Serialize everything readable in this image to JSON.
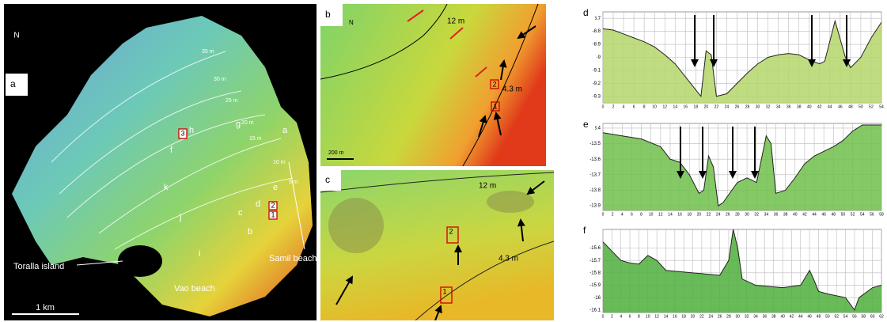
{
  "map_a": {
    "label": "a",
    "north": "N",
    "contours": [
      "35 m",
      "30 m",
      "25 m",
      "20 m",
      "15 m",
      "10 m",
      "5 m"
    ],
    "letters": [
      "g",
      "h",
      "f",
      "k",
      "j",
      "c",
      "d",
      "e",
      "a",
      "b",
      "i"
    ],
    "boxes": [
      "3",
      "2",
      "1"
    ],
    "places": [
      "Toralla island",
      "Samil beach",
      "Vao beach"
    ],
    "scale": "1 km"
  },
  "map_b": {
    "label": "b",
    "north": "N",
    "depths": [
      "12 m",
      "4.3 m"
    ],
    "boxes": [
      "2",
      "1"
    ],
    "scale": "200 m"
  },
  "map_c": {
    "label": "c",
    "depths": [
      "12 m",
      "4.3 m"
    ],
    "boxes": [
      "2",
      "1"
    ]
  },
  "chart_data": [
    {
      "type": "line",
      "label": "d",
      "x": [
        0,
        2,
        4,
        6,
        8,
        10,
        12,
        14,
        16,
        18,
        19,
        20,
        21,
        22,
        24,
        26,
        28,
        30,
        32,
        34,
        36,
        38,
        40,
        42,
        43,
        45,
        47,
        48,
        50,
        52,
        54
      ],
      "values": [
        -8.78,
        -8.79,
        -8.82,
        -8.85,
        -8.88,
        -8.92,
        -8.98,
        -9.05,
        -9.15,
        -9.25,
        -9.3,
        -8.95,
        -8.98,
        -9.3,
        -9.28,
        -9.2,
        -9.12,
        -9.05,
        -9.0,
        -8.98,
        -8.97,
        -8.98,
        -9.02,
        -9.05,
        -9.03,
        -8.72,
        -9.0,
        -9.08,
        -9.0,
        -8.85,
        -8.73
      ],
      "xlim": [
        0,
        54
      ],
      "xticks": [
        0,
        2,
        4,
        6,
        8,
        10,
        12,
        14,
        16,
        18,
        20,
        22,
        24,
        26,
        28,
        30,
        32,
        34,
        36,
        38,
        40,
        42,
        44,
        46,
        48,
        50,
        52,
        54
      ],
      "ylim": [
        -9.35,
        -8.65
      ],
      "yticks": [
        -8.7,
        -8.8,
        -8.9,
        -9.0,
        -9.1,
        -9.2,
        -9.3
      ],
      "color": "#b5d66a"
    },
    {
      "type": "line",
      "label": "e",
      "x": [
        0,
        4,
        8,
        12,
        14,
        16,
        18,
        20,
        21,
        22,
        23,
        24,
        25,
        28,
        30,
        32,
        34,
        35,
        36,
        38,
        40,
        42,
        44,
        46,
        48,
        50,
        52,
        54,
        58
      ],
      "values": [
        -13.43,
        -13.45,
        -13.47,
        -13.52,
        -13.6,
        -13.62,
        -13.7,
        -13.82,
        -13.8,
        -13.58,
        -13.65,
        -13.9,
        -13.88,
        -13.75,
        -13.72,
        -13.75,
        -13.45,
        -13.5,
        -13.82,
        -13.8,
        -13.72,
        -13.63,
        -13.58,
        -13.55,
        -13.52,
        -13.48,
        -13.42,
        -13.38,
        -13.38
      ],
      "xlim": [
        0,
        58
      ],
      "xticks": [
        0,
        2,
        4,
        6,
        8,
        10,
        12,
        14,
        16,
        18,
        20,
        22,
        24,
        26,
        28,
        30,
        32,
        34,
        36,
        38,
        40,
        42,
        44,
        46,
        48,
        50,
        52,
        54,
        56,
        58
      ],
      "ylim": [
        -13.93,
        -13.37
      ],
      "yticks": [
        -13.4,
        -13.5,
        -13.6,
        -13.7,
        -13.8,
        -13.9
      ],
      "color": "#6fbf4a"
    },
    {
      "type": "line",
      "label": "f",
      "x": [
        0,
        4,
        6,
        8,
        10,
        12,
        14,
        20,
        26,
        28,
        29,
        30,
        31,
        34,
        40,
        44,
        46,
        47,
        48,
        50,
        54,
        56,
        57,
        60,
        62
      ],
      "values": [
        -15.55,
        -15.7,
        -15.72,
        -15.73,
        -15.66,
        -15.7,
        -15.78,
        -15.8,
        -15.82,
        -15.7,
        -15.45,
        -15.6,
        -15.85,
        -15.9,
        -15.92,
        -15.9,
        -15.78,
        -15.86,
        -15.95,
        -15.97,
        -16.0,
        -16.1,
        -16.0,
        -15.92,
        -15.9
      ],
      "xlim": [
        0,
        62
      ],
      "xticks": [
        0,
        2,
        4,
        6,
        8,
        10,
        12,
        14,
        16,
        18,
        20,
        22,
        24,
        26,
        28,
        30,
        32,
        34,
        36,
        38,
        40,
        42,
        44,
        46,
        48,
        50,
        52,
        54,
        56,
        58,
        60,
        62
      ],
      "ylim": [
        -16.12,
        -15.45
      ],
      "yticks": [
        -15.6,
        -15.7,
        -15.8,
        -15.9,
        -16.0,
        -16.1
      ],
      "color": "#4fae3c"
    }
  ]
}
